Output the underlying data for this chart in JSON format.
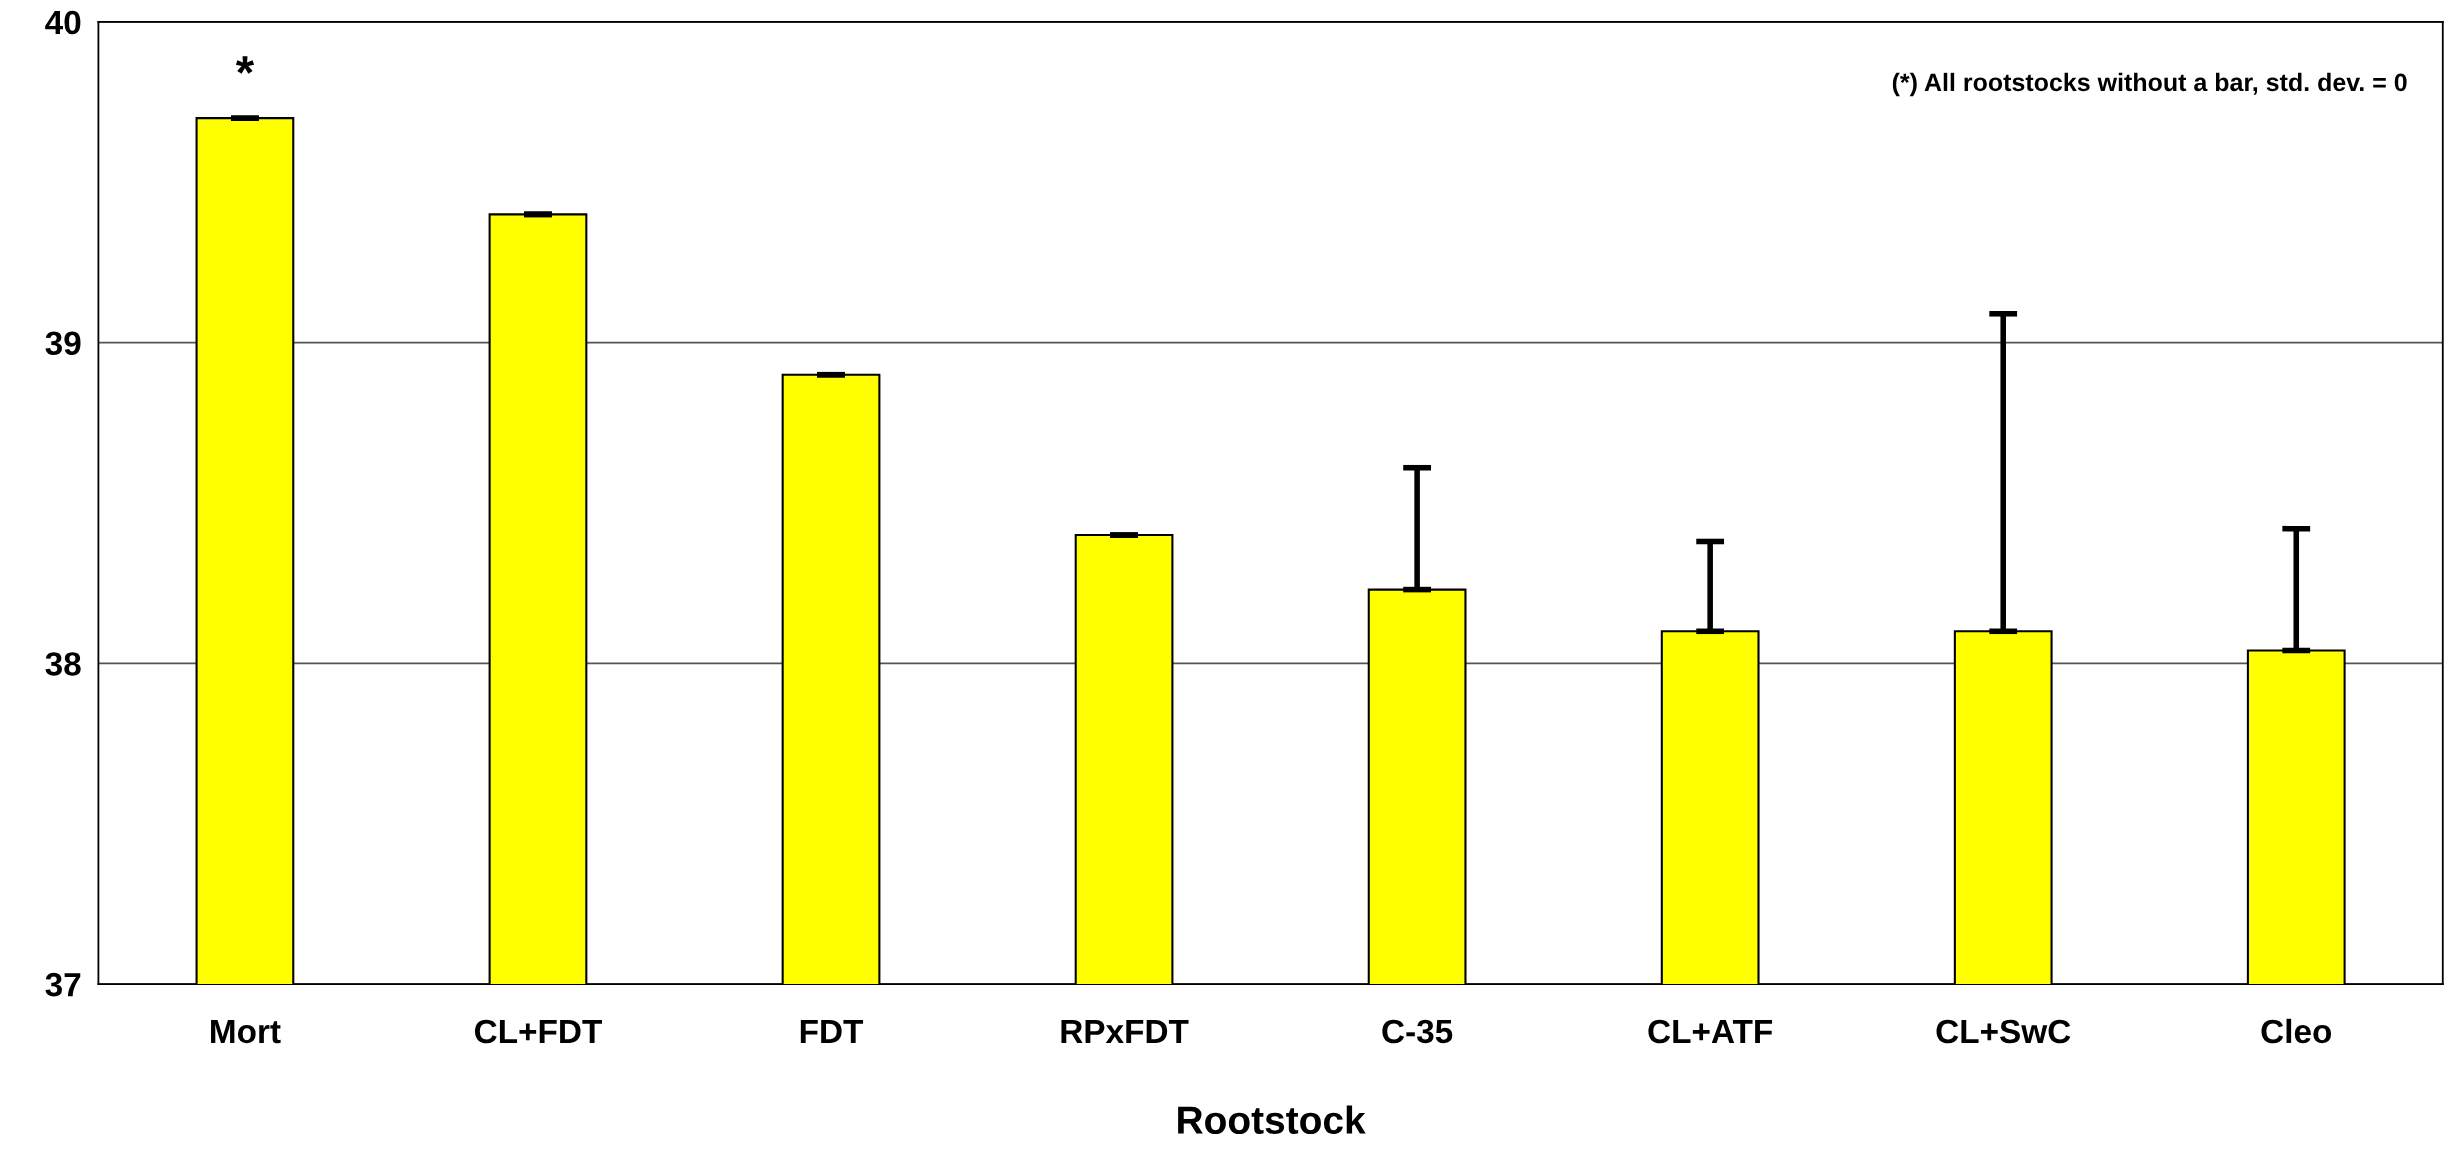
{
  "chart_data": {
    "type": "bar",
    "xlabel": "Rootstock",
    "categories": [
      "Mort",
      "CL+FDT",
      "FDT",
      "RPxFDT",
      "C-35",
      "CL+ATF",
      "CL+SwC",
      "Cleo"
    ],
    "values": [
      39.7,
      39.4,
      38.9,
      38.4,
      38.23,
      38.1,
      38.1,
      38.04
    ],
    "errors": [
      [
        39.7,
        39.7
      ],
      [
        39.4,
        39.4
      ],
      [
        38.9,
        38.9
      ],
      [
        38.4,
        38.4
      ],
      [
        38.23,
        38.61
      ],
      [
        38.1,
        38.38
      ],
      [
        38.1,
        39.09
      ],
      [
        38.04,
        38.42
      ]
    ],
    "color": "#ffff00",
    "ylim": [
      37,
      40
    ],
    "yticks": [
      37,
      38,
      39,
      40
    ],
    "grid": "y",
    "annotations": [
      "*",
      "(*) All rootstocks without a bar, std. dev. = 0"
    ]
  }
}
